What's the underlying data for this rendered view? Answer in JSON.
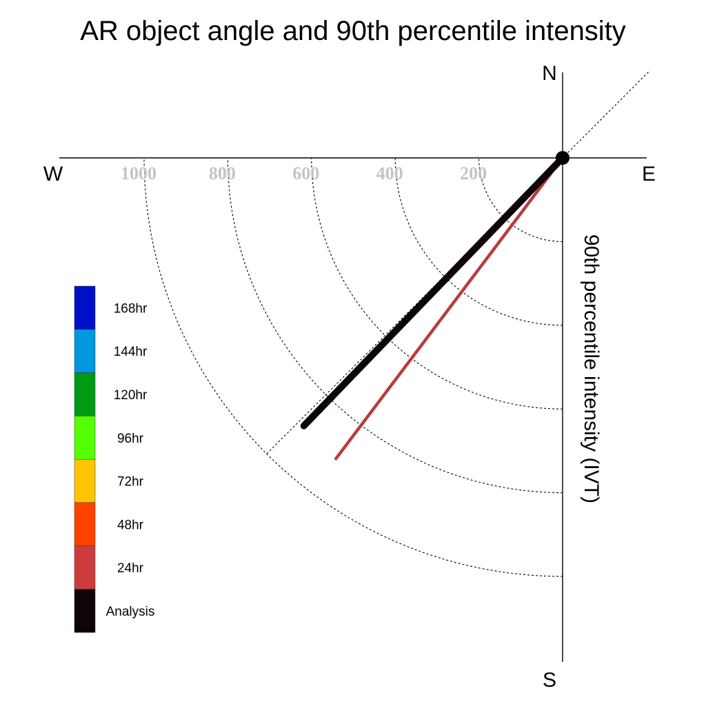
{
  "chart_data": {
    "type": "polar-line",
    "title": "AR object angle and 90th percentile intensity",
    "ylabel": "90th percentile intensity (IVT)",
    "compass": {
      "north": "N",
      "south": "S",
      "east": "E",
      "west": "W"
    },
    "radial_ticks": [
      "200",
      "400",
      "600",
      "800",
      "1000"
    ],
    "radial_tick_values": [
      200,
      400,
      600,
      800,
      1000
    ],
    "radial_max": 1000,
    "reference_line_angle_deg": 225,
    "series": [
      {
        "name": "24hr",
        "angle_deg": 217,
        "intensity": 900,
        "color": "#b83c3c"
      },
      {
        "name": "Analysis",
        "angle_deg": 224,
        "intensity": 890,
        "color": "#0d0508"
      }
    ],
    "legend": [
      {
        "label": "168hr",
        "color": "#0010c8"
      },
      {
        "label": "144hr",
        "color": "#0098df"
      },
      {
        "label": "120hr",
        "color": "#009a14"
      },
      {
        "label": "96hr",
        "color": "#55ff00"
      },
      {
        "label": "72hr",
        "color": "#ffc400"
      },
      {
        "label": "48hr",
        "color": "#ff4200"
      },
      {
        "label": "24hr",
        "color": "#cd3c3c"
      },
      {
        "label": "Analysis",
        "color": "#0d0508"
      }
    ]
  }
}
